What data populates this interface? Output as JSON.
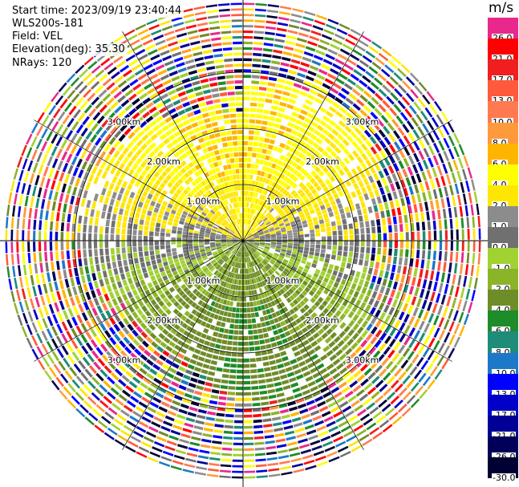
{
  "header": {
    "start_time": "Start time: 2023/09/19 23:40:44",
    "instrument": "WLS200s-181",
    "field": "Field: VEL",
    "elevation": "Elevation(deg): 35.30",
    "nrays": "NRays: 120"
  },
  "colorbar": {
    "unit": "m/s",
    "levels": [
      {
        "label": "26.0",
        "value": 26.0,
        "color": "#e8288c"
      },
      {
        "label": "21.0",
        "value": 21.0,
        "color": "#ff0000"
      },
      {
        "label": "17.0",
        "value": 17.0,
        "color": "#f01e1e"
      },
      {
        "label": "13.0",
        "value": 13.0,
        "color": "#ff5a3c"
      },
      {
        "label": "10.0",
        "value": 10.0,
        "color": "#ff7a50"
      },
      {
        "label": "8.0",
        "value": 8.0,
        "color": "#ff9a3c"
      },
      {
        "label": "6.0",
        "value": 6.0,
        "color": "#ffb400"
      },
      {
        "label": "4.0",
        "value": 4.0,
        "color": "#ffff00"
      },
      {
        "label": "2.0",
        "value": 2.0,
        "color": "#ffe600"
      },
      {
        "label": "1.0",
        "value": 1.0,
        "color": "#8c8c8c"
      },
      {
        "label": "0.0",
        "value": 0.0,
        "color": "#707070"
      },
      {
        "label": "-1.0",
        "value": -1.0,
        "color": "#a0d232"
      },
      {
        "label": "-2.0",
        "value": -2.0,
        "color": "#8cb428"
      },
      {
        "label": "-4.0",
        "value": -4.0,
        "color": "#6e8c28"
      },
      {
        "label": "-6.0",
        "value": -6.0,
        "color": "#1e8c28"
      },
      {
        "label": "-8.0",
        "value": -8.0,
        "color": "#1e8c78"
      },
      {
        "label": "-10.0",
        "value": -10.0,
        "color": "#1e78c8"
      },
      {
        "label": "-13.0",
        "value": -13.0,
        "color": "#0000ff"
      },
      {
        "label": "-17.0",
        "value": -17.0,
        "color": "#0000c8"
      },
      {
        "label": "-21.0",
        "value": -21.0,
        "color": "#000096"
      },
      {
        "label": "-26.0",
        "value": -26.0,
        "color": "#00005a"
      },
      {
        "label": "-30.0",
        "value": -30.0,
        "color": "#000032"
      }
    ]
  },
  "chart_data": {
    "type": "heatmap",
    "projection": "polar-ppi",
    "field": "VEL",
    "units": "m/s",
    "nrays": 120,
    "range_rings_km": [
      1.0,
      2.0,
      3.0
    ],
    "range_ring_labels": [
      "1.00km",
      "2.00km",
      "3.00km"
    ],
    "max_range_km": 4.3,
    "sector_pattern": [
      {
        "azimuth_from": 300,
        "azimuth_to": 60,
        "range_from_km": 0,
        "range_to_km": 2.6,
        "dominant": "2.0 to 6.0"
      },
      {
        "azimuth_from": 60,
        "azimuth_to": 105,
        "range_from_km": 0,
        "range_to_km": 2.2,
        "dominant": "0.0 to 2.0"
      },
      {
        "azimuth_from": 105,
        "azimuth_to": 255,
        "range_from_km": 0,
        "range_to_km": 2.8,
        "dominant": "-1.0 to -8.0"
      },
      {
        "azimuth_from": 255,
        "azimuth_to": 300,
        "range_from_km": 0,
        "range_to_km": 2.3,
        "dominant": "0.0 to -2.0"
      },
      {
        "azimuth_from": 0,
        "azimuth_to": 360,
        "range_from_km": 2.7,
        "range_to_km": 4.3,
        "dominant": "noise (all levels)"
      }
    ],
    "grid": true,
    "colorbar_position": "right"
  }
}
